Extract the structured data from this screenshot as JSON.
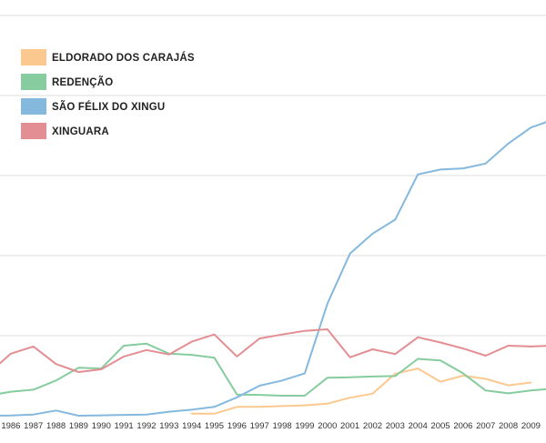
{
  "chart_data": {
    "type": "line",
    "title": "",
    "xlabel": "",
    "ylabel": "",
    "grid": true,
    "legend_placement": "top-left",
    "x": [
      "1985",
      "1986",
      "1987",
      "1988",
      "1989",
      "1990",
      "1991",
      "1992",
      "1993",
      "1994",
      "1995",
      "1996",
      "1997",
      "1998",
      "1999",
      "2000",
      "2001",
      "2002",
      "2003",
      "2004",
      "2005",
      "2006",
      "2007",
      "2008",
      "2009",
      "2010"
    ],
    "xtick_labels": [
      "1986",
      "1987",
      "1988",
      "1989",
      "1990",
      "1991",
      "1992",
      "1993",
      "1994",
      "1995",
      "1996",
      "1997",
      "1998",
      "1999",
      "2000",
      "2001",
      "2002",
      "2003",
      "2004",
      "2005",
      "2006",
      "2007",
      "2008",
      "2009"
    ],
    "ylim": [
      0,
      100
    ],
    "gridlines": [
      0,
      20,
      40,
      60,
      80,
      100
    ],
    "series": [
      {
        "name": "ELDORADO DOS CARAJÁS",
        "color": "#fbc98f",
        "values": [
          null,
          null,
          null,
          null,
          null,
          null,
          null,
          null,
          null,
          0.5,
          0.5,
          2.2,
          2.2,
          2.4,
          2.6,
          3.0,
          4.5,
          5.5,
          10.5,
          11.8,
          8.5,
          10.0,
          9.2,
          7.6,
          8.3,
          null
        ]
      },
      {
        "name": "REDENÇÃO",
        "color": "#86cc9e",
        "values": [
          5.0,
          6.0,
          6.5,
          8.8,
          12.0,
          11.8,
          17.5,
          18.0,
          15.5,
          15.2,
          14.5,
          5.3,
          5.2,
          5.0,
          5.0,
          9.5,
          9.6,
          9.8,
          9.9,
          14.2,
          13.8,
          10.6,
          6.3,
          5.6,
          6.3,
          6.8
        ]
      },
      {
        "name": "SÃO FÉLIX DO XINGU",
        "color": "#84b9dd",
        "values": [
          0,
          0.05,
          0.3,
          1.3,
          0,
          0.1,
          0.2,
          0.3,
          1.0,
          1.5,
          2.2,
          4.6,
          7.5,
          8.8,
          10.6,
          28.0,
          40.5,
          45.5,
          49.0,
          60.3,
          61.5,
          61.8,
          63.0,
          68.0,
          72.0,
          74.0
        ]
      },
      {
        "name": "XINGUARA",
        "color": "#e38e92",
        "values": [
          10.5,
          15.5,
          17.3,
          12.9,
          10.9,
          11.6,
          14.8,
          16.4,
          15.3,
          18.5,
          20.3,
          14.8,
          19.3,
          20.3,
          21.2,
          21.6,
          14.6,
          16.6,
          15.4,
          19.6,
          18.3,
          16.8,
          15.0,
          17.5,
          17.3,
          17.5
        ]
      }
    ]
  }
}
